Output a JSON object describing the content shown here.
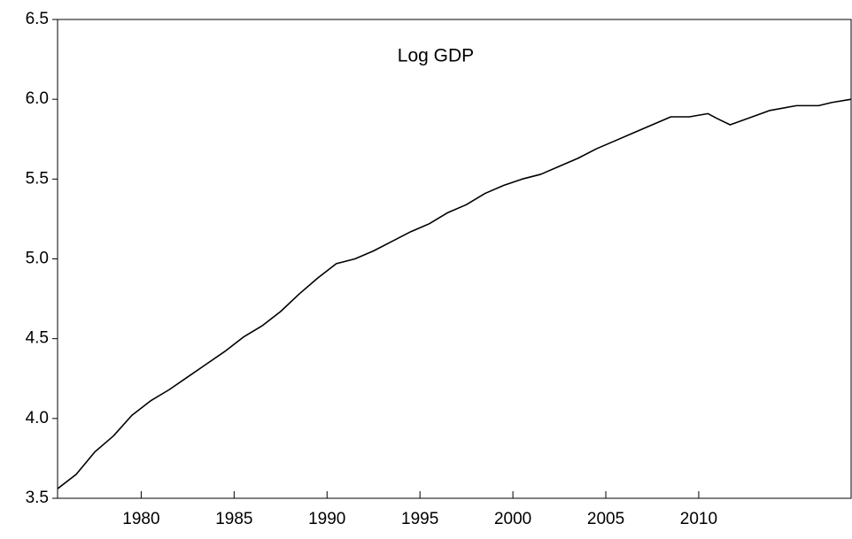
{
  "chart_data": {
    "type": "line",
    "title": "Log GDP",
    "x": [
      1975.5,
      1976.5,
      1977.5,
      1978.5,
      1979.5,
      1980.5,
      1981.5,
      1982.5,
      1983.5,
      1984.5,
      1985.5,
      1986.5,
      1987.5,
      1988.5,
      1989.5,
      1990.5,
      1991.5,
      1992.5,
      1993.5,
      1994.5,
      1995.5,
      1996.5,
      1997.5,
      1998.5,
      1999.5,
      2000.5,
      2001.5,
      2002.5,
      2003.5,
      2004.5,
      2005.5,
      2006.5,
      2007.5,
      2008.5,
      2009.5,
      2010.5,
      2010.98,
      2011.69,
      2012.88,
      2013.83,
      2015.26,
      2016.45,
      2017.17,
      2018.2
    ],
    "series": [
      {
        "name": "Log GDP",
        "color": "#000000",
        "values": [
          3.56,
          3.65,
          3.79,
          3.89,
          4.02,
          4.11,
          4.18,
          4.26,
          4.34,
          4.42,
          4.51,
          4.58,
          4.67,
          4.78,
          4.88,
          4.97,
          5.0,
          5.05,
          5.11,
          5.17,
          5.22,
          5.29,
          5.34,
          5.41,
          5.46,
          5.5,
          5.53,
          5.58,
          5.63,
          5.69,
          5.74,
          5.79,
          5.84,
          5.89,
          5.89,
          5.91,
          5.88,
          5.84,
          5.89,
          5.93,
          5.96,
          5.96,
          5.98,
          6.0
        ]
      }
    ],
    "xlim": [
      1975.5,
      2018.2
    ],
    "xticks": [
      1980,
      1985,
      1990,
      1995,
      2000,
      2005,
      2010
    ],
    "ylim": [
      3.5,
      6.5
    ],
    "yticks": [
      {
        "value": 3.5,
        "label": "3.5"
      },
      {
        "value": 4.0,
        "label": "4.0"
      },
      {
        "value": 4.5,
        "label": "4.5"
      },
      {
        "value": 5.0,
        "label": "5.0"
      },
      {
        "value": 5.5,
        "label": "5.5"
      },
      {
        "value": 6.0,
        "label": "6.0"
      },
      {
        "value": 6.5,
        "label": "6.5"
      }
    ],
    "grid": false
  }
}
